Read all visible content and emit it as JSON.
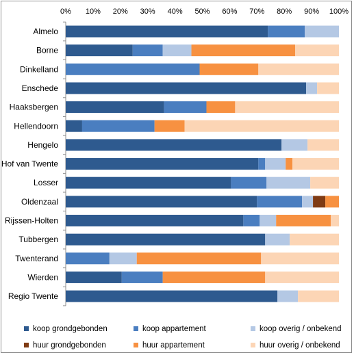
{
  "chart_data": {
    "type": "bar",
    "orientation": "horizontal",
    "stacked": "percent",
    "title": "",
    "xlabel": "",
    "ylabel": "",
    "xlim": [
      0,
      100
    ],
    "x_ticks": [
      "0%",
      "10%",
      "20%",
      "30%",
      "40%",
      "50%",
      "60%",
      "70%",
      "80%",
      "90%",
      "100%"
    ],
    "x_axis_position": "top",
    "grid": false,
    "legend_position": "bottom",
    "categories": [
      "Almelo",
      "Borne",
      "Dinkelland",
      "Enschede",
      "Haaksbergen",
      "Hellendoorn",
      "Hengelo",
      "Hof van Twente",
      "Losser",
      "Oldenzaal",
      "Rijssen-Holten",
      "Tubbergen",
      "Twenterand",
      "Wierden",
      "Regio Twente"
    ],
    "series": [
      {
        "name": "koop grondgebonden",
        "color": "#2e5a8f",
        "values": [
          74,
          24.5,
          0,
          88,
          36,
          6,
          79,
          70.5,
          60.5,
          70,
          65,
          73,
          0,
          20.5,
          77.5
        ]
      },
      {
        "name": "koop appartement",
        "color": "#4a7ec0",
        "values": [
          13.5,
          11,
          49,
          0,
          15.5,
          26.5,
          0,
          2.5,
          13,
          16.5,
          6,
          0,
          16,
          15,
          0
        ]
      },
      {
        "name": "koop overig / onbekend",
        "color": "#b4c8e4",
        "values": [
          12.5,
          10.5,
          0,
          4,
          0,
          0,
          9.5,
          7.5,
          16,
          4,
          6,
          9,
          10,
          0,
          7.5
        ]
      },
      {
        "name": "huur grondgebonden",
        "color": "#7f3b14",
        "values": [
          0,
          0,
          0,
          0,
          0,
          0,
          0,
          0,
          0,
          4.5,
          0,
          0,
          0,
          0,
          0
        ]
      },
      {
        "name": "huur appartement",
        "color": "#f79141",
        "values": [
          0,
          38,
          21.5,
          0,
          10.5,
          11,
          0,
          2.5,
          0,
          5,
          20,
          0,
          45.5,
          37.5,
          0
        ]
      },
      {
        "name": "huur overig / onbekend",
        "color": "#fcd5b5",
        "values": [
          0,
          16,
          29.5,
          8,
          38,
          56.5,
          11.5,
          17,
          10.5,
          0,
          3,
          18,
          28.5,
          27,
          15
        ]
      }
    ]
  }
}
